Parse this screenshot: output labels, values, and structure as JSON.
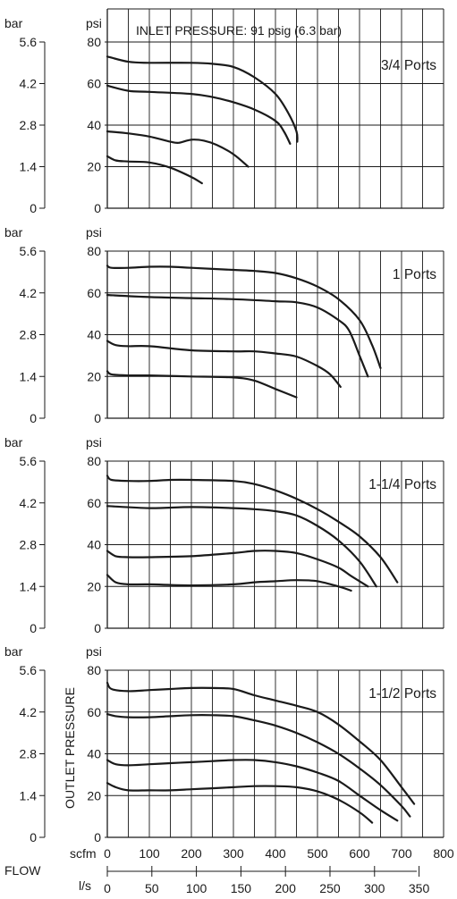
{
  "header": "INLET PRESSURE: 91 psig (6.3 bar)",
  "units": {
    "bar": "bar",
    "psi": "psi",
    "scfm": "scfm",
    "ls": "l/s",
    "flow": "FLOW",
    "ylabel": "OUTLET PRESSURE"
  },
  "colors": {
    "line": "#1a1a1a",
    "grid": "#1a1a1a",
    "background": "#ffffff"
  },
  "chart_data": [
    {
      "type": "line",
      "title": "3/4 Ports",
      "xlim": [
        0,
        800
      ],
      "ylim": [
        0,
        80
      ],
      "series": [
        {
          "x": [
            0,
            50,
            100,
            200,
            250,
            300,
            350,
            400,
            430,
            450,
            452
          ],
          "y": [
            73,
            70.5,
            70,
            70,
            69.5,
            68,
            63,
            55,
            46,
            37,
            32
          ]
        },
        {
          "x": [
            0,
            50,
            100,
            200,
            250,
            300,
            350,
            400,
            420,
            435
          ],
          "y": [
            59,
            56.5,
            56,
            55,
            53.5,
            51,
            47.5,
            42,
            37,
            31
          ]
        },
        {
          "x": [
            0,
            50,
            100,
            150,
            170,
            200,
            230,
            260,
            300,
            335
          ],
          "y": [
            37,
            36,
            34.5,
            32,
            31.5,
            33,
            32.5,
            30.5,
            26,
            20
          ]
        },
        {
          "x": [
            0,
            20,
            50,
            100,
            150,
            200,
            225
          ],
          "y": [
            25,
            23,
            22.5,
            22,
            19.5,
            15,
            12
          ]
        }
      ]
    },
    {
      "type": "line",
      "title": "1 Ports",
      "xlim": [
        0,
        800
      ],
      "ylim": [
        0,
        80
      ],
      "series": [
        {
          "x": [
            0,
            10,
            50,
            100,
            150,
            200,
            300,
            350,
            400,
            450,
            500,
            550,
            600,
            630,
            650
          ],
          "y": [
            73,
            72,
            72,
            72.5,
            72.5,
            72,
            71,
            70.5,
            69.5,
            67,
            63,
            57,
            47,
            35,
            24
          ]
        },
        {
          "x": [
            0,
            100,
            200,
            300,
            400,
            450,
            500,
            550,
            575,
            600,
            620
          ],
          "y": [
            59,
            58,
            57.5,
            57,
            56,
            55.5,
            53,
            47,
            42,
            30,
            20
          ]
        },
        {
          "x": [
            0,
            20,
            50,
            100,
            200,
            300,
            350,
            400,
            450,
            500,
            530,
            555
          ],
          "y": [
            37,
            35,
            34.5,
            34.5,
            32.5,
            32,
            32,
            31,
            29.5,
            25,
            21,
            15
          ]
        },
        {
          "x": [
            0,
            10,
            50,
            100,
            200,
            300,
            350,
            400,
            450
          ],
          "y": [
            22.5,
            21,
            20.5,
            20.5,
            20,
            19.5,
            18,
            14,
            10
          ]
        }
      ]
    },
    {
      "type": "line",
      "title": "1-1/4 Ports",
      "xlim": [
        0,
        800
      ],
      "ylim": [
        0,
        80
      ],
      "series": [
        {
          "x": [
            0,
            10,
            50,
            100,
            150,
            200,
            300,
            350,
            400,
            450,
            500,
            550,
            600,
            650,
            690
          ],
          "y": [
            73,
            71,
            70.5,
            70.5,
            71,
            71,
            70.5,
            69,
            66,
            62,
            57,
            51,
            44,
            34,
            22
          ]
        },
        {
          "x": [
            0,
            100,
            200,
            300,
            350,
            400,
            450,
            500,
            550,
            600,
            640
          ],
          "y": [
            58.5,
            57.5,
            58,
            57.5,
            57,
            56,
            54,
            49,
            42,
            32,
            20
          ]
        },
        {
          "x": [
            0,
            20,
            50,
            100,
            200,
            300,
            350,
            400,
            450,
            500,
            550,
            580,
            620
          ],
          "y": [
            37,
            34.5,
            34,
            34,
            34.5,
            36,
            37,
            37,
            36,
            33,
            29,
            25,
            20
          ]
        },
        {
          "x": [
            0,
            20,
            50,
            100,
            200,
            300,
            350,
            400,
            450,
            500,
            550,
            580
          ],
          "y": [
            25.5,
            22,
            21,
            21,
            20.5,
            21,
            22,
            22.5,
            23,
            22.5,
            20,
            18
          ]
        }
      ]
    },
    {
      "type": "line",
      "title": "1-1/2 Ports",
      "xlim": [
        0,
        800
      ],
      "ylim": [
        0,
        80
      ],
      "series": [
        {
          "x": [
            0,
            10,
            50,
            100,
            150,
            200,
            250,
            300,
            350,
            400,
            450,
            500,
            550,
            600,
            650,
            700,
            730
          ],
          "y": [
            74,
            71,
            70,
            70.5,
            71,
            71.5,
            71.5,
            71,
            68,
            65.5,
            63,
            60,
            54,
            46,
            37,
            24,
            16
          ]
        },
        {
          "x": [
            0,
            20,
            50,
            100,
            150,
            200,
            250,
            300,
            350,
            400,
            450,
            500,
            550,
            600,
            650,
            700,
            720
          ],
          "y": [
            59,
            58,
            57.5,
            57.5,
            58,
            58.5,
            58.5,
            58,
            56,
            53.5,
            50,
            45.5,
            40,
            33,
            25,
            15,
            10
          ]
        },
        {
          "x": [
            0,
            20,
            50,
            100,
            150,
            200,
            250,
            300,
            350,
            400,
            450,
            500,
            550,
            600,
            650,
            690
          ],
          "y": [
            37,
            35,
            34.5,
            35,
            35.5,
            36,
            36.5,
            37,
            37,
            36,
            34,
            31,
            27,
            20,
            13,
            8
          ]
        },
        {
          "x": [
            0,
            20,
            50,
            100,
            150,
            200,
            250,
            300,
            350,
            400,
            450,
            500,
            550,
            600,
            630
          ],
          "y": [
            26,
            24,
            22.5,
            22.5,
            22.5,
            23,
            23.5,
            24,
            24.5,
            24.5,
            24,
            22,
            18,
            12,
            7
          ]
        }
      ]
    }
  ],
  "axes": {
    "psi_ticks": [
      "0",
      "20",
      "40",
      "60",
      "80"
    ],
    "bar_ticks": [
      "0",
      "1.4",
      "2.8",
      "4.2",
      "5.6"
    ],
    "scfm_ticks": [
      "0",
      "100",
      "200",
      "300",
      "400",
      "500",
      "600",
      "700",
      "800"
    ],
    "ls_ticks": [
      "0",
      "50",
      "100",
      "150",
      "200",
      "250",
      "300",
      "350"
    ]
  }
}
